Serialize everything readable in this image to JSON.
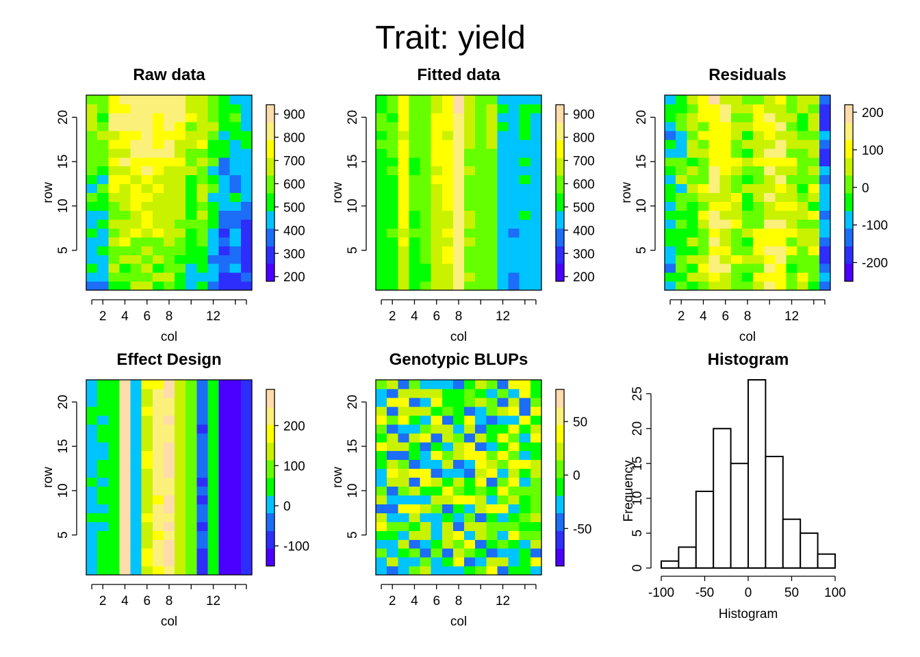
{
  "figure": {
    "title": "Trait: yield"
  },
  "colors": {
    "palette": [
      "#4b00ff",
      "#2e2efc",
      "#1c6df7",
      "#00c4ff",
      "#00ff00",
      "#66ff00",
      "#c9f200",
      "#ffff00",
      "#fbf07a",
      "#ffdcaa"
    ]
  },
  "chart_data": [
    {
      "id": "raw",
      "type": "heatmap",
      "title": "Raw data",
      "xlabel": "col",
      "ylabel": "row",
      "ncol": 15,
      "nrow": 22,
      "xticks": [
        2,
        4,
        6,
        8,
        12
      ],
      "yticks": [
        5,
        10,
        15,
        20
      ],
      "legend_ticks": [
        200,
        300,
        400,
        500,
        600,
        700,
        800,
        900
      ],
      "zlim": [
        180,
        940
      ],
      "col_means": [
        530,
        520,
        680,
        700,
        720,
        720,
        700,
        690,
        650,
        580,
        610,
        510,
        420,
        430,
        380
      ],
      "row_gradient": 10,
      "noise": 70,
      "seed": 11
    },
    {
      "id": "fitted",
      "type": "heatmap",
      "title": "Fitted data",
      "xlabel": "col",
      "ylabel": "row",
      "ncol": 15,
      "nrow": 22,
      "xticks": [
        2,
        4,
        6,
        8,
        12
      ],
      "yticks": [
        5,
        10,
        15,
        20
      ],
      "legend_ticks": [
        200,
        300,
        400,
        500,
        600,
        700,
        800,
        900
      ],
      "zlim": [
        180,
        940
      ],
      "col_means": [
        530,
        560,
        720,
        560,
        590,
        700,
        720,
        840,
        640,
        600,
        620,
        460,
        430,
        470,
        450
      ],
      "row_gradient": 2,
      "noise": 25,
      "seed": 23
    },
    {
      "id": "residuals",
      "type": "heatmap",
      "title": "Residuals",
      "xlabel": "col",
      "ylabel": "row",
      "ncol": 15,
      "nrow": 22,
      "xticks": [
        2,
        4,
        6,
        8,
        12
      ],
      "yticks": [
        5,
        10,
        15,
        20
      ],
      "legend_ticks": [
        -200,
        -100,
        0,
        100,
        200
      ],
      "zlim": [
        -250,
        220
      ],
      "col_means": [
        -60,
        -20,
        20,
        60,
        120,
        100,
        40,
        20,
        60,
        110,
        100,
        40,
        20,
        30,
        -140
      ],
      "row_gradient": 0,
      "noise": 60,
      "seed": 37
    },
    {
      "id": "effect",
      "type": "heatmap",
      "title": "Effect Design",
      "xlabel": "col",
      "ylabel": "row",
      "ncol": 15,
      "nrow": 22,
      "xticks": [
        2,
        4,
        6,
        8,
        12
      ],
      "yticks": [
        5,
        10,
        15,
        20
      ],
      "legend_ticks": [
        -100,
        0,
        100,
        200
      ],
      "zlim": [
        -150,
        290
      ],
      "col_means": [
        20,
        30,
        50,
        270,
        0,
        160,
        210,
        250,
        130,
        100,
        -60,
        40,
        -150,
        -130,
        -90
      ],
      "row_gradient": 0,
      "noise": 12,
      "seed": 41
    },
    {
      "id": "blups",
      "type": "heatmap",
      "title": "Genotypic BLUPs",
      "xlabel": "col",
      "ylabel": "row",
      "ncol": 15,
      "nrow": 22,
      "xticks": [
        2,
        4,
        6,
        8,
        12
      ],
      "yticks": [
        5,
        10,
        15,
        20
      ],
      "legend_ticks": [
        -50,
        0,
        50
      ],
      "zlim": [
        -85,
        80
      ],
      "col_means": [
        0,
        0,
        0,
        0,
        0,
        0,
        0,
        0,
        0,
        0,
        0,
        0,
        0,
        0,
        0
      ],
      "row_gradient": 0,
      "noise": 45,
      "seed": 53
    },
    {
      "id": "hist",
      "type": "bar",
      "title": "Histogram",
      "xlabel": "Histogram",
      "ylabel": "Frequency",
      "bin_edges": [
        -100,
        -80,
        -60,
        -40,
        -20,
        0,
        20,
        40,
        60,
        80,
        100
      ],
      "values": [
        1,
        3,
        11,
        20,
        15,
        27,
        16,
        7,
        5,
        2
      ],
      "xticks": [
        -100,
        -50,
        0,
        50,
        100
      ],
      "yticks": [
        0,
        5,
        10,
        15,
        20,
        25
      ],
      "xlim": [
        -100,
        100
      ],
      "ylim": [
        0,
        27
      ]
    }
  ]
}
